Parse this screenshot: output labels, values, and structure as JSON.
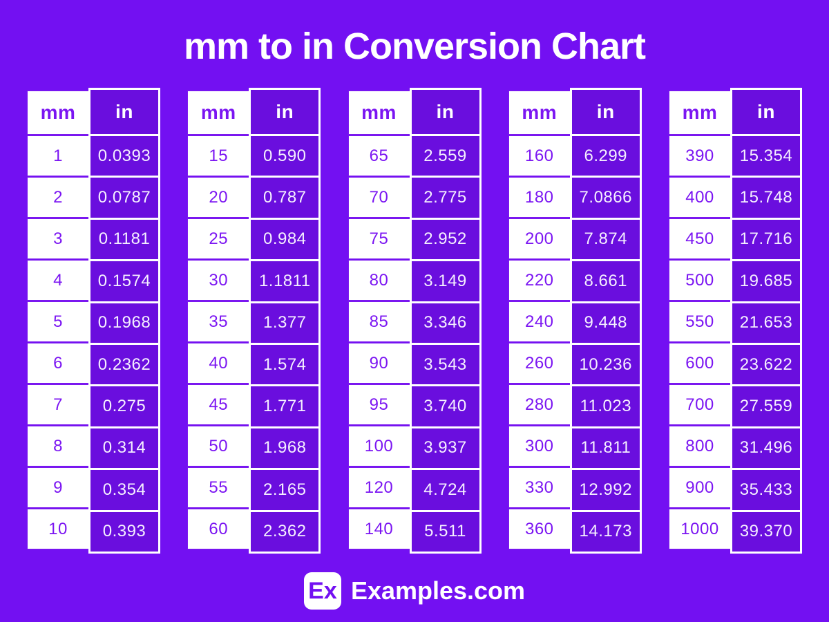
{
  "title": "mm to in Conversion Chart",
  "footer": {
    "logo_text": "Ex",
    "brand": "Examples.com"
  },
  "colors": {
    "background": "#7310F2",
    "in_cell_fill": "#6A0EDE",
    "mm_text_purple": "#7B15F2",
    "white": "#FFFFFF"
  },
  "chart_data": {
    "type": "table",
    "title": "mm to in Conversion Chart",
    "columns": [
      "mm",
      "in"
    ],
    "layout": "five side-by-side two-column tables; mm cells white with purple text, in cells purple with white text",
    "groups": [
      {
        "rows": [
          [
            "1",
            "0.0393"
          ],
          [
            "2",
            "0.0787"
          ],
          [
            "3",
            "0.1181"
          ],
          [
            "4",
            "0.1574"
          ],
          [
            "5",
            "0.1968"
          ],
          [
            "6",
            "0.2362"
          ],
          [
            "7",
            "0.275"
          ],
          [
            "8",
            "0.314"
          ],
          [
            "9",
            "0.354"
          ],
          [
            "10",
            "0.393"
          ]
        ]
      },
      {
        "rows": [
          [
            "15",
            "0.590"
          ],
          [
            "20",
            "0.787"
          ],
          [
            "25",
            "0.984"
          ],
          [
            "30",
            "1.1811"
          ],
          [
            "35",
            "1.377"
          ],
          [
            "40",
            "1.574"
          ],
          [
            "45",
            "1.771"
          ],
          [
            "50",
            "1.968"
          ],
          [
            "55",
            "2.165"
          ],
          [
            "60",
            "2.362"
          ]
        ]
      },
      {
        "rows": [
          [
            "65",
            "2.559"
          ],
          [
            "70",
            "2.775"
          ],
          [
            "75",
            "2.952"
          ],
          [
            "80",
            "3.149"
          ],
          [
            "85",
            "3.346"
          ],
          [
            "90",
            "3.543"
          ],
          [
            "95",
            "3.740"
          ],
          [
            "100",
            "3.937"
          ],
          [
            "120",
            "4.724"
          ],
          [
            "140",
            "5.511"
          ]
        ]
      },
      {
        "rows": [
          [
            "160",
            "6.299"
          ],
          [
            "180",
            "7.0866"
          ],
          [
            "200",
            "7.874"
          ],
          [
            "220",
            "8.661"
          ],
          [
            "240",
            "9.448"
          ],
          [
            "260",
            "10.236"
          ],
          [
            "280",
            "11.023"
          ],
          [
            "300",
            "11.811"
          ],
          [
            "330",
            "12.992"
          ],
          [
            "360",
            "14.173"
          ]
        ]
      },
      {
        "rows": [
          [
            "390",
            "15.354"
          ],
          [
            "400",
            "15.748"
          ],
          [
            "450",
            "17.716"
          ],
          [
            "500",
            "19.685"
          ],
          [
            "550",
            "21.653"
          ],
          [
            "600",
            "23.622"
          ],
          [
            "700",
            "27.559"
          ],
          [
            "800",
            "31.496"
          ],
          [
            "900",
            "35.433"
          ],
          [
            "1000",
            "39.370"
          ]
        ]
      }
    ]
  }
}
